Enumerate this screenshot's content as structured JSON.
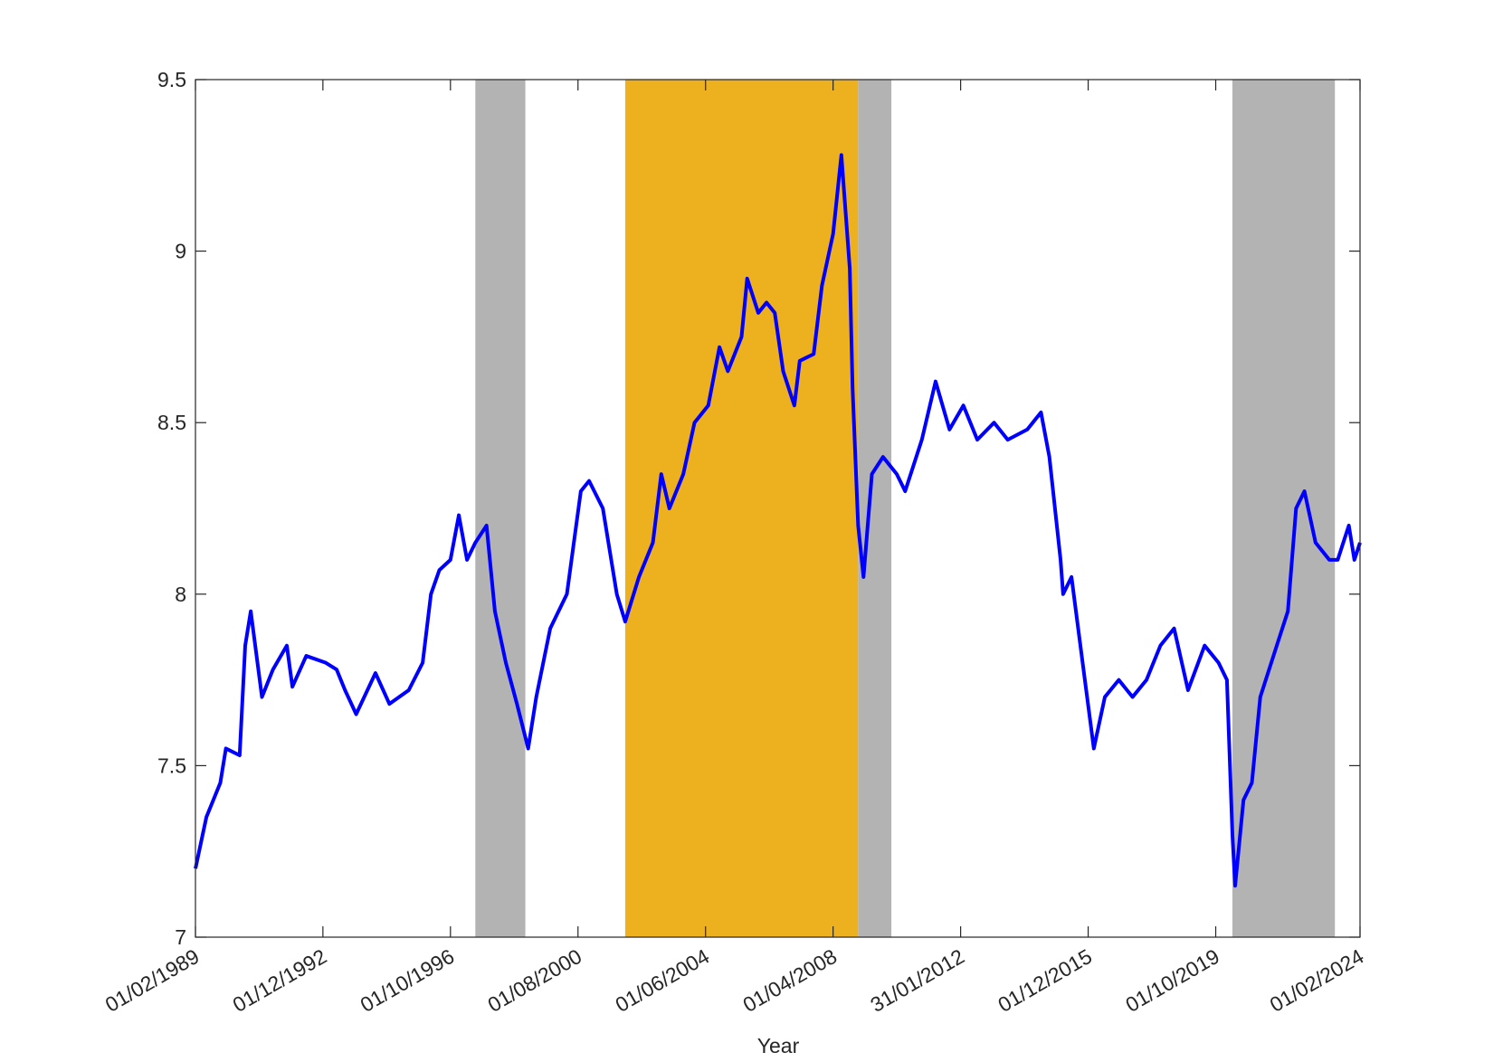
{
  "chart_data": {
    "type": "line",
    "xlabel": "Year",
    "x": [
      "01/02/1989",
      "01/06/1989",
      "01/11/1989",
      "01/01/1990",
      "01/06/1990",
      "01/08/1990",
      "01/10/1990",
      "01/02/1991",
      "01/06/1991",
      "01/11/1991",
      "01/01/1992",
      "01/06/1992",
      "01/01/1993",
      "01/05/1993",
      "01/08/1993",
      "01/12/1993",
      "01/07/1994",
      "01/12/1994",
      "01/07/1995",
      "01/12/1995",
      "01/03/1996",
      "01/06/1996",
      "01/10/1996",
      "01/01/1997",
      "01/04/1997",
      "01/07/1997",
      "01/11/1997",
      "01/02/1998",
      "01/06/1998",
      "01/10/1998",
      "01/02/1999",
      "01/05/1999",
      "01/10/1999",
      "01/04/2000",
      "01/09/2000",
      "01/12/2000",
      "01/05/2001",
      "01/07/2001",
      "01/10/2001",
      "01/01/2002",
      "01/06/2002",
      "01/11/2002",
      "01/02/2003",
      "01/05/2003",
      "01/10/2003",
      "01/02/2004",
      "01/07/2004",
      "01/11/2004",
      "01/02/2005",
      "01/07/2005",
      "01/09/2005",
      "01/01/2006",
      "01/04/2006",
      "01/07/2006",
      "01/10/2006",
      "01/02/2007",
      "01/04/2007",
      "01/09/2007",
      "01/12/2007",
      "01/04/2008",
      "01/07/2008",
      "01/10/2008",
      "01/11/2008",
      "01/01/2009",
      "01/03/2009",
      "01/06/2009",
      "01/10/2009",
      "01/03/2010",
      "01/06/2010",
      "01/12/2010",
      "01/05/2011",
      "01/10/2011",
      "01/03/2012",
      "01/08/2012",
      "01/02/2013",
      "01/07/2013",
      "01/02/2014",
      "01/07/2014",
      "01/10/2014",
      "01/02/2015",
      "01/03/2015",
      "01/06/2015",
      "01/10/2015",
      "01/02/2016",
      "01/06/2016",
      "01/11/2016",
      "01/04/2017",
      "01/09/2017",
      "01/02/2018",
      "01/07/2018",
      "01/12/2018",
      "01/06/2019",
      "01/11/2019",
      "01/02/2020",
      "01/04/2020",
      "01/05/2020",
      "01/08/2020",
      "01/11/2020",
      "01/02/2021",
      "01/08/2021",
      "01/12/2021",
      "01/03/2022",
      "01/06/2022",
      "01/10/2022",
      "01/03/2023",
      "01/06/2023",
      "01/10/2023",
      "01/12/2023",
      "01/02/2024"
    ],
    "values": [
      7.2,
      7.35,
      7.45,
      7.55,
      7.53,
      7.85,
      7.95,
      7.7,
      7.78,
      7.85,
      7.73,
      7.82,
      7.8,
      7.78,
      7.72,
      7.65,
      7.77,
      7.68,
      7.72,
      7.8,
      8.0,
      8.07,
      8.1,
      8.23,
      8.1,
      8.15,
      8.2,
      7.95,
      7.8,
      7.68,
      7.55,
      7.7,
      7.9,
      8.0,
      8.3,
      8.33,
      8.25,
      8.15,
      8.0,
      7.92,
      8.05,
      8.15,
      8.35,
      8.25,
      8.35,
      8.5,
      8.55,
      8.72,
      8.65,
      8.75,
      8.92,
      8.82,
      8.85,
      8.82,
      8.65,
      8.55,
      8.68,
      8.7,
      8.9,
      9.05,
      9.28,
      8.95,
      8.6,
      8.2,
      8.05,
      8.35,
      8.4,
      8.35,
      8.3,
      8.45,
      8.62,
      8.48,
      8.55,
      8.45,
      8.5,
      8.45,
      8.48,
      8.53,
      8.4,
      8.1,
      8.0,
      8.05,
      7.8,
      7.55,
      7.7,
      7.75,
      7.7,
      7.75,
      7.85,
      7.9,
      7.72,
      7.85,
      7.8,
      7.75,
      7.3,
      7.15,
      7.4,
      7.45,
      7.7,
      7.85,
      7.95,
      8.25,
      8.3,
      8.15,
      8.1,
      8.1,
      8.2,
      8.1,
      8.15
    ],
    "color": "#0000ff",
    "shaded_regions": [
      {
        "start": "01/07/1997",
        "end": "01/01/1999",
        "color": "#b3b3b3"
      },
      {
        "start": "01/01/2002",
        "end": "01/01/2009",
        "color": "#edb120"
      },
      {
        "start": "01/01/2009",
        "end": "01/01/2010",
        "color": "#b3b3b3"
      },
      {
        "start": "01/04/2020",
        "end": "01/05/2023",
        "color": "#b3b3b3"
      }
    ],
    "xlim": [
      "01/02/1989",
      "01/02/2024"
    ],
    "xticks": [
      "01/02/1989",
      "01/12/1992",
      "01/10/1996",
      "01/08/2000",
      "01/06/2004",
      "01/04/2008",
      "31/01/2012",
      "01/12/2015",
      "01/10/2019",
      "01/02/2024"
    ],
    "ylim": [
      7,
      9.5
    ],
    "yticks": [
      7,
      7.5,
      8,
      8.5,
      9,
      9.5
    ]
  }
}
